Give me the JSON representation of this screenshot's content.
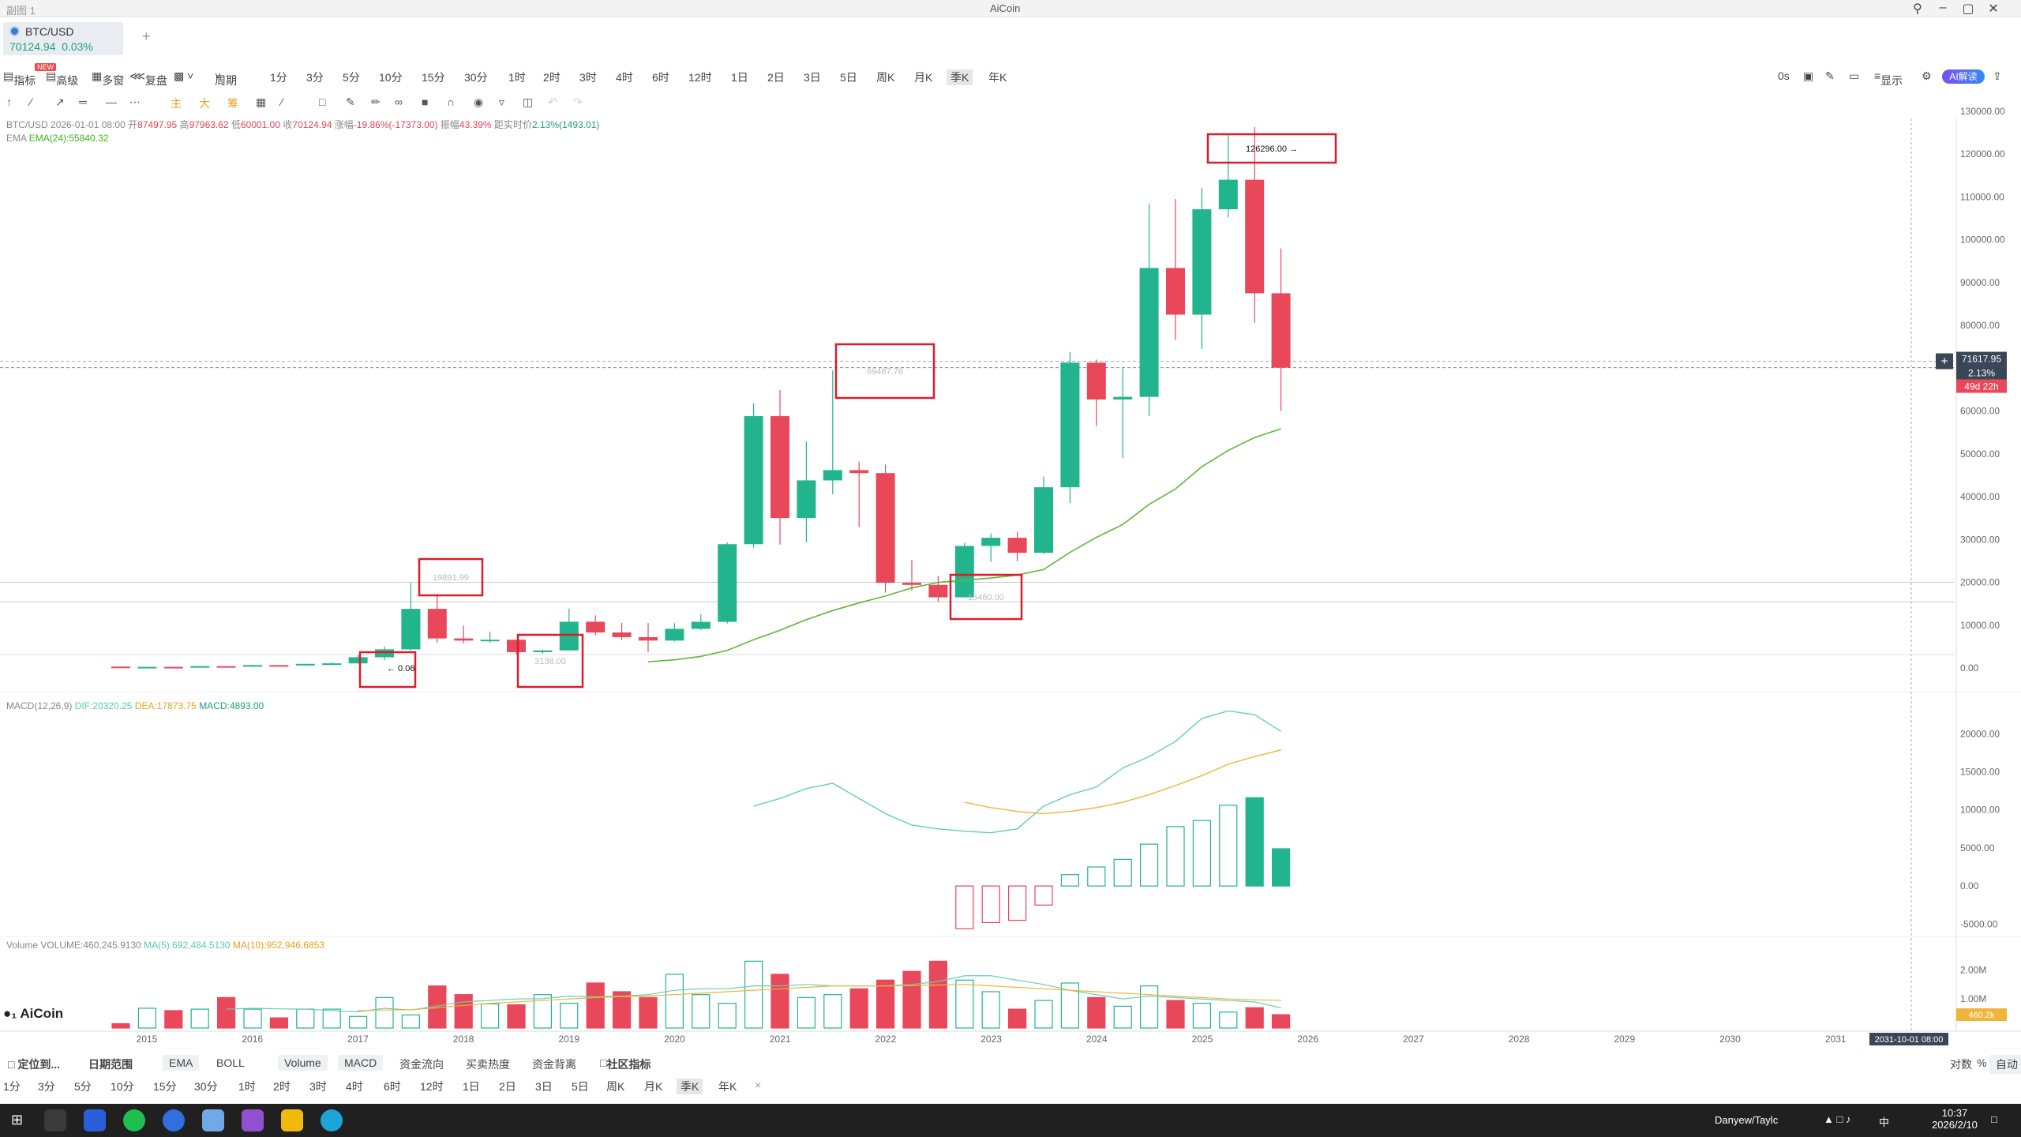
{
  "window": {
    "title": "AiCoin",
    "tab_title": "副图 1",
    "min_icon": "minimize-icon",
    "max_icon": "maximize-icon",
    "close_icon": "close-icon"
  },
  "symbol_tab": {
    "name": "BTC/USD",
    "price": "70124.94",
    "change": "0.03%",
    "add": "+"
  },
  "toolbar": {
    "left": [
      "指标",
      "高级",
      "多窗",
      "复盘"
    ],
    "period_label": "周期",
    "periods": [
      "1分",
      "3分",
      "5分",
      "10分",
      "15分",
      "30分",
      "1时",
      "2时",
      "3时",
      "4时",
      "6时",
      "12时",
      "1日",
      "2日",
      "3日",
      "5日",
      "周K",
      "月K",
      "季K",
      "年K"
    ],
    "selected_period": "季K",
    "new_badge": "NEW",
    "right": [
      "0s",
      "显示"
    ],
    "ai_badge": "AI解读"
  },
  "drawbar": {
    "indicators": [
      "主",
      "大",
      "筹"
    ]
  },
  "legend": {
    "ohlc_symbol": "BTC/USD",
    "ohlc_time": "2026-01-01 08:00",
    "open_label": "开",
    "open": "87497.95",
    "high_label": "高",
    "high": "97963.62",
    "low_label": "低",
    "low": "60001.00",
    "close_label": "收",
    "close": "70124.94",
    "chg_label": "涨幅",
    "chg": "-19.86%(-17373.00)",
    "amp_label": "振幅",
    "amp": "43.39%",
    "rt_label": "距实时价",
    "rt": "2.13%(1493.01)",
    "ema_name": "EMA",
    "ema_value": "EMA(24):55840.32",
    "macd_name": "MACD(12,26,9)",
    "macd_dif": "DIF:20320.25",
    "macd_dea": "DEA:17873.75",
    "macd_val": "MACD:4893.00",
    "vol_name": "Volume",
    "vol_value": "VOLUME:460,245.9130",
    "vol_ma5": "MA(5):692,484.5130",
    "vol_ma10": "MA(10):952,946.6853"
  },
  "price_axis": [
    "130000.00",
    "120000.00",
    "110000.00",
    "100000.00",
    "90000.00",
    "80000.00",
    "70000.00",
    "60000.00",
    "50000.00",
    "40000.00",
    "30000.00",
    "20000.00",
    "10000.00",
    "0.00"
  ],
  "price_tag": {
    "price": "71617.95",
    "pct": "2.13%",
    "countdown": "49d 22h"
  },
  "macd_axis": [
    "20000.00",
    "15000.00",
    "10000.00",
    "5000.00",
    "0.00",
    "-5000.00"
  ],
  "vol_axis": [
    "2.00M",
    "1.00M"
  ],
  "vol_tag": "460.2k",
  "time_axis": [
    "2015",
    "2016",
    "2017",
    "2018",
    "2019",
    "2020",
    "2021",
    "2022",
    "2023",
    "2024",
    "2025",
    "2026",
    "2027",
    "2028",
    "2029",
    "2030",
    "2031"
  ],
  "time_tag": "2031-10-01 08:00",
  "annotations": {
    "ath": "126296.00",
    "mark_2017": "19891.99",
    "mark_2021": "69487.78",
    "mark_low": "0.06",
    "mark_2019": "3138.00",
    "mark_2022": "15460.00"
  },
  "bottombar": {
    "locate": "定位到...",
    "range": "日期范围",
    "indicators": [
      "EMA",
      "BOLL",
      "Volume",
      "MACD",
      "资金流向",
      "买卖热度",
      "资金背离",
      "社区指标"
    ],
    "periods": [
      "1分",
      "3分",
      "5分",
      "10分",
      "15分",
      "30分",
      "1时",
      "2时",
      "3时",
      "4时",
      "6时",
      "12时",
      "1日",
      "2日",
      "3日",
      "5日",
      "周K",
      "月K",
      "季K",
      "年K"
    ],
    "close": "×",
    "right": [
      "对数",
      "%",
      "自动"
    ]
  },
  "logo": "AiCoin",
  "taskbar": {
    "ticker": "Danyew/Taylc",
    "time": "10:37",
    "date": "2026/2/10",
    "ime": "中"
  },
  "chart_data": {
    "type": "candlestick",
    "interval": "quarterly",
    "columns": [
      "open",
      "high",
      "low",
      "close"
    ],
    "series": [
      {
        "t": "2015Q1",
        "ohlc": [
          320,
          320,
          200,
          245
        ]
      },
      {
        "t": "2015Q2",
        "ohlc": [
          245,
          270,
          220,
          263
        ]
      },
      {
        "t": "2015Q3",
        "ohlc": [
          263,
          315,
          200,
          236
        ]
      },
      {
        "t": "2015Q4",
        "ohlc": [
          236,
          500,
          230,
          430
        ]
      },
      {
        "t": "2016Q1",
        "ohlc": [
          430,
          460,
          360,
          415
        ]
      },
      {
        "t": "2016Q2",
        "ohlc": [
          415,
          780,
          410,
          670
        ]
      },
      {
        "t": "2016Q3",
        "ohlc": [
          670,
          690,
          480,
          610
        ]
      },
      {
        "t": "2016Q4",
        "ohlc": [
          610,
          980,
          600,
          960
        ]
      },
      {
        "t": "2017Q1",
        "ohlc": [
          960,
          1290,
          750,
          1080
        ]
      },
      {
        "t": "2017Q2",
        "ohlc": [
          1080,
          3000,
          1000,
          2500
        ]
      },
      {
        "t": "2017Q3",
        "ohlc": [
          2500,
          5000,
          1800,
          4350
        ]
      },
      {
        "t": "2017Q4",
        "ohlc": [
          4350,
          19891.99,
          4100,
          13800
        ]
      },
      {
        "t": "2018Q1",
        "ohlc": [
          13800,
          17200,
          5900,
          6900
        ]
      },
      {
        "t": "2018Q2",
        "ohlc": [
          6900,
          9900,
          5800,
          6400
        ]
      },
      {
        "t": "2018Q3",
        "ohlc": [
          6400,
          8500,
          5900,
          6600
        ]
      },
      {
        "t": "2018Q4",
        "ohlc": [
          6600,
          6600,
          3138,
          3700
        ]
      },
      {
        "t": "2019Q1",
        "ohlc": [
          3700,
          4200,
          3350,
          4100
        ]
      },
      {
        "t": "2019Q2",
        "ohlc": [
          4100,
          13880,
          4050,
          10800
        ]
      },
      {
        "t": "2019Q3",
        "ohlc": [
          10800,
          12300,
          7700,
          8300
        ]
      },
      {
        "t": "2019Q4",
        "ohlc": [
          8300,
          10500,
          6500,
          7200
        ]
      },
      {
        "t": "2020Q1",
        "ohlc": [
          7200,
          10500,
          3800,
          6400
        ]
      },
      {
        "t": "2020Q2",
        "ohlc": [
          6400,
          10450,
          6200,
          9140
        ]
      },
      {
        "t": "2020Q3",
        "ohlc": [
          9140,
          12500,
          8900,
          10780
        ]
      },
      {
        "t": "2020Q4",
        "ohlc": [
          10780,
          29300,
          10400,
          28900
        ]
      },
      {
        "t": "2021Q1",
        "ohlc": [
          28900,
          61800,
          28100,
          58800
        ]
      },
      {
        "t": "2021Q2",
        "ohlc": [
          58800,
          64900,
          28800,
          35000
        ]
      },
      {
        "t": "2021Q3",
        "ohlc": [
          35000,
          52900,
          29300,
          43800
        ]
      },
      {
        "t": "2021Q4",
        "ohlc": [
          43800,
          69487.78,
          40600,
          46200
        ]
      },
      {
        "t": "2022Q1",
        "ohlc": [
          46200,
          48200,
          32900,
          45500
        ]
      },
      {
        "t": "2022Q2",
        "ohlc": [
          45500,
          47500,
          17600,
          19900
        ]
      },
      {
        "t": "2022Q3",
        "ohlc": [
          19900,
          25200,
          18100,
          19400
        ]
      },
      {
        "t": "2022Q4",
        "ohlc": [
          19400,
          21500,
          15460,
          16500
        ]
      },
      {
        "t": "2023Q1",
        "ohlc": [
          16500,
          29200,
          16500,
          28500
        ]
      },
      {
        "t": "2023Q2",
        "ohlc": [
          28500,
          31400,
          24800,
          30400
        ]
      },
      {
        "t": "2023Q3",
        "ohlc": [
          30400,
          31800,
          24900,
          26900
        ]
      },
      {
        "t": "2023Q4",
        "ohlc": [
          26900,
          44700,
          26600,
          42200
        ]
      },
      {
        "t": "2024Q1",
        "ohlc": [
          42200,
          73800,
          38500,
          71300
        ]
      },
      {
        "t": "2024Q2",
        "ohlc": [
          71300,
          72000,
          56500,
          62700
        ]
      },
      {
        "t": "2024Q3",
        "ohlc": [
          62700,
          70000,
          49000,
          63300
        ]
      },
      {
        "t": "2024Q4",
        "ohlc": [
          63300,
          108300,
          58800,
          93400
        ]
      },
      {
        "t": "2025Q1",
        "ohlc": [
          93400,
          109500,
          76600,
          82500
        ]
      },
      {
        "t": "2025Q2",
        "ohlc": [
          82500,
          112000,
          74500,
          107100
        ]
      },
      {
        "t": "2025Q3",
        "ohlc": [
          107100,
          124400,
          105200,
          114000
        ]
      },
      {
        "t": "2025Q4",
        "ohlc": [
          114000,
          126296,
          80600,
          87500
        ]
      },
      {
        "t": "2026Q1",
        "ohlc": [
          87497.95,
          97963.62,
          60001,
          70124.94
        ]
      }
    ],
    "ema24": [
      null,
      null,
      null,
      null,
      null,
      null,
      null,
      null,
      null,
      null,
      null,
      null,
      null,
      null,
      null,
      null,
      null,
      null,
      null,
      null,
      1450,
      1900,
      2700,
      4100,
      6600,
      8800,
      11300,
      13400,
      15200,
      16800,
      18700,
      20000,
      20500,
      21000,
      21700,
      23000,
      27000,
      30500,
      33500,
      38200,
      41800,
      47000,
      50800,
      53800,
      55840.32
    ],
    "macd": {
      "dif": [
        null,
        null,
        null,
        null,
        null,
        null,
        null,
        null,
        null,
        null,
        null,
        null,
        null,
        null,
        null,
        null,
        null,
        null,
        null,
        null,
        null,
        null,
        null,
        null,
        10500,
        11500,
        12800,
        13500,
        11500,
        9500,
        8000,
        7500,
        7200,
        7000,
        7500,
        10500,
        12000,
        13000,
        15500,
        17000,
        19000,
        22000,
        23000,
        22500,
        20320.25
      ],
      "dea": [
        null,
        null,
        null,
        null,
        null,
        null,
        null,
        null,
        null,
        null,
        null,
        null,
        null,
        null,
        null,
        null,
        null,
        null,
        null,
        null,
        null,
        null,
        null,
        null,
        null,
        null,
        null,
        null,
        null,
        null,
        null,
        null,
        11000,
        10300,
        9800,
        9500,
        9800,
        10300,
        11000,
        12000,
        13200,
        14500,
        16000,
        17000,
        17873.75
      ],
      "hist": [
        null,
        null,
        null,
        null,
        null,
        null,
        null,
        null,
        null,
        null,
        null,
        null,
        null,
        null,
        null,
        null,
        null,
        null,
        null,
        null,
        null,
        null,
        null,
        null,
        null,
        null,
        null,
        null,
        null,
        null,
        null,
        null,
        -5600,
        -4800,
        -4500,
        -2500,
        1500,
        2500,
        3500,
        5500,
        7800,
        8600,
        10600,
        11600,
        4893
      ]
    },
    "volume": [
      150,
      680,
      600,
      650,
      1050,
      650,
      350,
      650,
      650,
      400,
      1050,
      450,
      1450,
      1150,
      830,
      800,
      1150,
      850,
      1550,
      1250,
      1050,
      1850,
      1150,
      850,
      2300,
      1850,
      1050,
      1150,
      1350,
      1650,
      1950,
      2300,
      1650,
      1250,
      650,
      950,
      1550,
      1050,
      750,
      1450,
      950,
      850,
      550,
      700,
      460.2
    ],
    "vol_ma5": [
      null,
      null,
      null,
      null,
      650,
      680,
      660,
      650,
      600,
      560,
      680,
      620,
      760,
      900,
      950,
      1000,
      1010,
      1100,
      1080,
      1100,
      1150,
      1300,
      1350,
      1350,
      1450,
      1450,
      1500,
      1450,
      1450,
      1450,
      1500,
      1600,
      1800,
      1800,
      1650,
      1500,
      1300,
      1150,
      1000,
      1100,
      1050,
      1000,
      950,
      900,
      692.48
    ],
    "vol_ma10": [
      null,
      null,
      null,
      null,
      null,
      null,
      null,
      null,
      null,
      600,
      620,
      630,
      700,
      780,
      850,
      900,
      950,
      1000,
      1050,
      1080,
      1100,
      1150,
      1200,
      1250,
      1300,
      1350,
      1400,
      1450,
      1450,
      1450,
      1460,
      1480,
      1500,
      1450,
      1400,
      1350,
      1300,
      1250,
      1200,
      1150,
      1100,
      1050,
      1000,
      970,
      952.95
    ],
    "y_range_price": [
      0,
      132000
    ],
    "y_range_macd": [
      -6000,
      22000
    ],
    "y_range_volume": [
      0,
      2500
    ],
    "volume_unit": "K",
    "colors": {
      "up": "#22b48c",
      "down": "#e8485a",
      "ema": "#5cb83a",
      "dif": "#62cfb6",
      "dea": "#f0b43a",
      "vol_ma5": "#62cfb6",
      "vol_ma10": "#f0b43a"
    }
  }
}
